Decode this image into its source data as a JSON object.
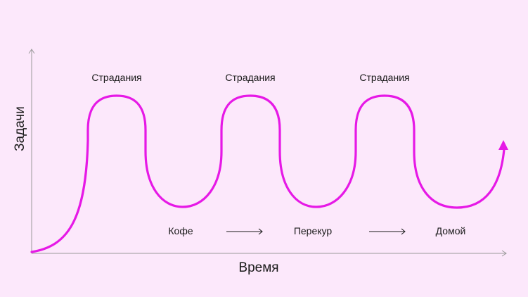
{
  "axes": {
    "x_label": "Время",
    "y_label": "Задачи"
  },
  "peaks": [
    {
      "label": "Страдания"
    },
    {
      "label": "Страдания"
    },
    {
      "label": "Страдания"
    }
  ],
  "steps": [
    {
      "label": "Кофе"
    },
    {
      "label": "Перекур"
    },
    {
      "label": "Домой"
    }
  ],
  "colors": {
    "background": "#fce8fb",
    "curve": "#e619e6",
    "axis": "#9a9a9a",
    "text": "#1a1a1a"
  }
}
